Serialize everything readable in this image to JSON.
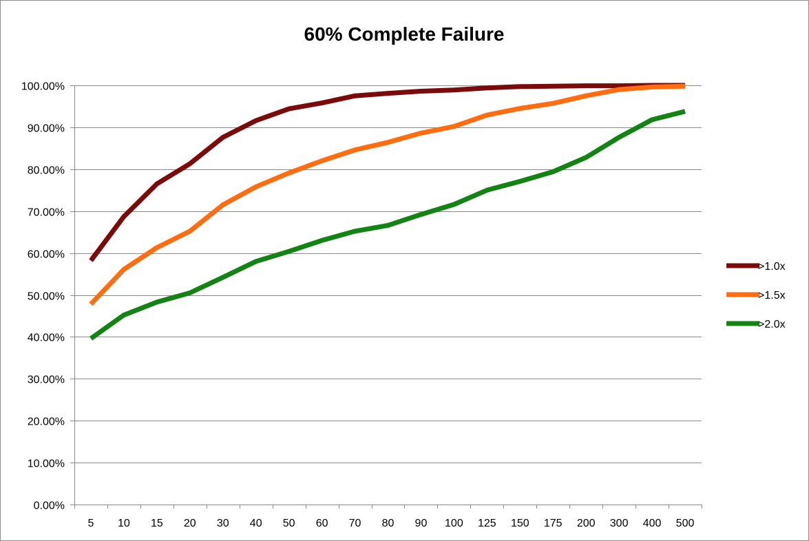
{
  "chart_data": {
    "type": "line",
    "title": "60% Complete Failure",
    "xlabel": "",
    "ylabel": "",
    "categories": [
      "5",
      "10",
      "15",
      "20",
      "30",
      "40",
      "50",
      "60",
      "70",
      "80",
      "90",
      "100",
      "125",
      "150",
      "175",
      "200",
      "300",
      "400",
      "500"
    ],
    "y_tick_labels": [
      "0.00%",
      "10.00%",
      "20.00%",
      "30.00%",
      "40.00%",
      "50.00%",
      "60.00%",
      "70.00%",
      "80.00%",
      "90.00%",
      "100.00%"
    ],
    "ylim": [
      0,
      1
    ],
    "y_ticks": [
      0,
      0.1,
      0.2,
      0.3,
      0.4,
      0.5,
      0.6,
      0.7,
      0.8,
      0.9,
      1.0
    ],
    "grid": true,
    "legend_position": "right",
    "series": [
      {
        "name": ">1.0x",
        "color": "#7b0a0a",
        "values": [
          0.582,
          0.687,
          0.765,
          0.813,
          0.876,
          0.916,
          0.944,
          0.958,
          0.975,
          0.981,
          0.986,
          0.989,
          0.994,
          0.997,
          0.998,
          0.999,
          0.999,
          1.0,
          1.0
        ]
      },
      {
        "name": ">1.5x",
        "color": "#ff6d10",
        "values": [
          0.478,
          0.561,
          0.613,
          0.652,
          0.715,
          0.758,
          0.791,
          0.82,
          0.846,
          0.864,
          0.886,
          0.902,
          0.929,
          0.945,
          0.957,
          0.975,
          0.99,
          0.996,
          0.998
        ]
      },
      {
        "name": ">2.0x",
        "color": "#138413",
        "values": [
          0.396,
          0.452,
          0.483,
          0.505,
          0.542,
          0.58,
          0.604,
          0.63,
          0.652,
          0.666,
          0.692,
          0.716,
          0.75,
          0.771,
          0.794,
          0.828,
          0.876,
          0.918,
          0.938
        ]
      }
    ]
  }
}
